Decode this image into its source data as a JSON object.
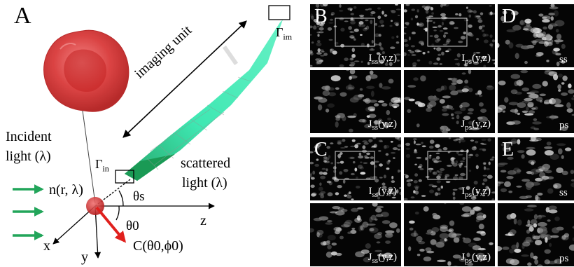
{
  "panel_a": {
    "letter": "A",
    "imaging_unit_label": "imaging unit",
    "gamma_im": "Γim",
    "gamma_in": "Γin",
    "incident_line1": "Incident",
    "incident_line2": "light (λ)",
    "scattered_line1": "scattered",
    "scattered_line2": "light (λ)",
    "refractive_index": "n(r, λ)",
    "theta_s": "θs",
    "theta_0": "θ0",
    "axis_x": "x",
    "axis_y": "y",
    "axis_z": "z",
    "direction_vector": "C(θ0,ϕ0)",
    "colors": {
      "cell": "#d62a2a",
      "beam": "#2de0a8",
      "cone_dark": "#1a9a55",
      "arrow_green": "#22a55a",
      "arrow_red": "#e0201d"
    }
  },
  "panels": [
    {
      "letter": "B",
      "tiles": [
        {
          "label_main": "I",
          "label_sub": "ss",
          "label_tail": "(y,z)"
        },
        {
          "label_main": "I",
          "label_sub": "ps",
          "label_tail": "(y,z)"
        },
        {
          "label_main": "J",
          "label_sub": "ss",
          "label_tail": "(y,z)"
        },
        {
          "label_main": "J",
          "label_sub": "ps",
          "label_tail": "(y,z)"
        }
      ]
    },
    {
      "letter": "D",
      "tiles": [
        {
          "label_main": "ss"
        },
        {
          "label_main": "ps"
        }
      ]
    },
    {
      "letter": "C",
      "tiles": [
        {
          "label_main": "I",
          "label_sub": "ss",
          "label_tail": "(y,z)"
        },
        {
          "label_main": "I",
          "label_sub": "ps",
          "label_tail": "(y,z)"
        },
        {
          "label_main": "J",
          "label_sub": "ss",
          "label_tail": "(y,z)"
        },
        {
          "label_main": "J",
          "label_sub": "ps",
          "label_tail": "(y,z)"
        }
      ]
    },
    {
      "letter": "E",
      "tiles": [
        {
          "label_main": "ss"
        },
        {
          "label_main": "ps"
        }
      ]
    }
  ]
}
